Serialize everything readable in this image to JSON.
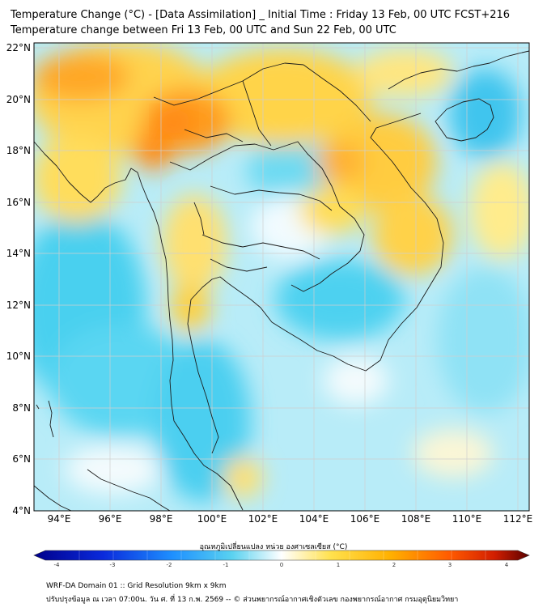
{
  "title": {
    "line1": "Temperature Change (°C) - [Data Assimilation] _ Initial Time : Friday 13 Feb, 00 UTC FCST+216",
    "line2": "Temperature change between Fri 13 Feb, 00 UTC and Sun 22 Feb, 00 UTC"
  },
  "map": {
    "lat_labels": [
      "22°N",
      "20°N",
      "18°N",
      "16°N",
      "14°N",
      "12°N",
      "10°N",
      "8°N",
      "6°N",
      "4°N"
    ],
    "lon_labels": [
      "94°E",
      "96°E",
      "98°E",
      "100°E",
      "102°E",
      "104°E",
      "106°E",
      "108°E",
      "110°E",
      "112°E"
    ],
    "lat_range": [
      4,
      22
    ],
    "lon_range": [
      93,
      112.5
    ],
    "grid": true
  },
  "colorbar": {
    "label": "อุณหภูมิเปลี่ยนแปลง หน่วย องศาเซลเซียส (°C)",
    "ticks": [
      "-4",
      "-3",
      "-2",
      "-1",
      "0",
      "1",
      "2",
      "3",
      "4"
    ],
    "range": [
      -4,
      4
    ],
    "colors": {
      "cold_dark": "#00008b",
      "cold": "#1e90ff",
      "cool": "#5ad2f0",
      "neutral": "#ffffff",
      "warm": "#ffe14d",
      "hot": "#ff8c00",
      "very_hot": "#d21e00",
      "extreme": "#5a0000"
    }
  },
  "footer": {
    "line1": "WRF-DA Domain 01 :: Grid Resolution 9km x 9km",
    "line2": "ปรับปรุงข้อมูล ณ เวลา 07:00น. วัน ศ. ที่ 13 ก.พ. 2569 -- © ส่วนพยากรณ์อากาศเชิงตัวเลข กองพยากรณ์อากาศ กรมอุตุนิยมวิทยา"
  }
}
